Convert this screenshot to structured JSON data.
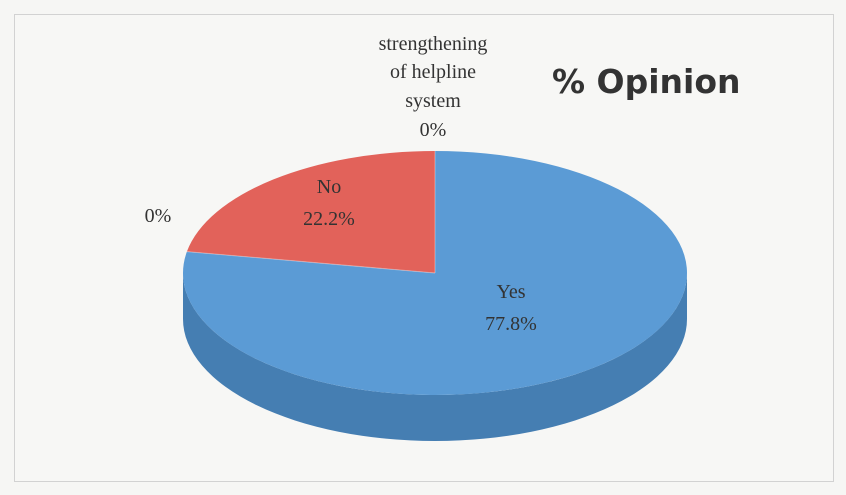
{
  "colors": {
    "yes_top": "#5b9bd5",
    "yes_side": "#4a86be",
    "no_top": "#e2625a",
    "no_side": "#c6534b",
    "label_text": "#333333",
    "title_text": "#333333"
  },
  "chart_data": {
    "type": "pie",
    "style": "3d",
    "title": "% Opinion",
    "slices": [
      {
        "name": "Yes",
        "value": 77.8,
        "label_name": "Yes",
        "label_value": "77.8%",
        "color": "#5b9bd5"
      },
      {
        "name": "No",
        "value": 22.2,
        "label_name": "No",
        "label_value": "22.2%",
        "color": "#e2625a"
      },
      {
        "name": "",
        "value": 0,
        "label_value": "0%"
      },
      {
        "name": "strengthening of helpline system",
        "value": 0,
        "label_value": "0%"
      }
    ],
    "labels": {
      "yes_name": "Yes",
      "yes_value": "77.8%",
      "no_name": "No",
      "no_value": "22.2%",
      "unnamed_value": "0%",
      "strengthening_line1": "strengthening",
      "strengthening_line2": "of helpline",
      "strengthening_line3": "system",
      "strengthening_value": "0%"
    }
  }
}
